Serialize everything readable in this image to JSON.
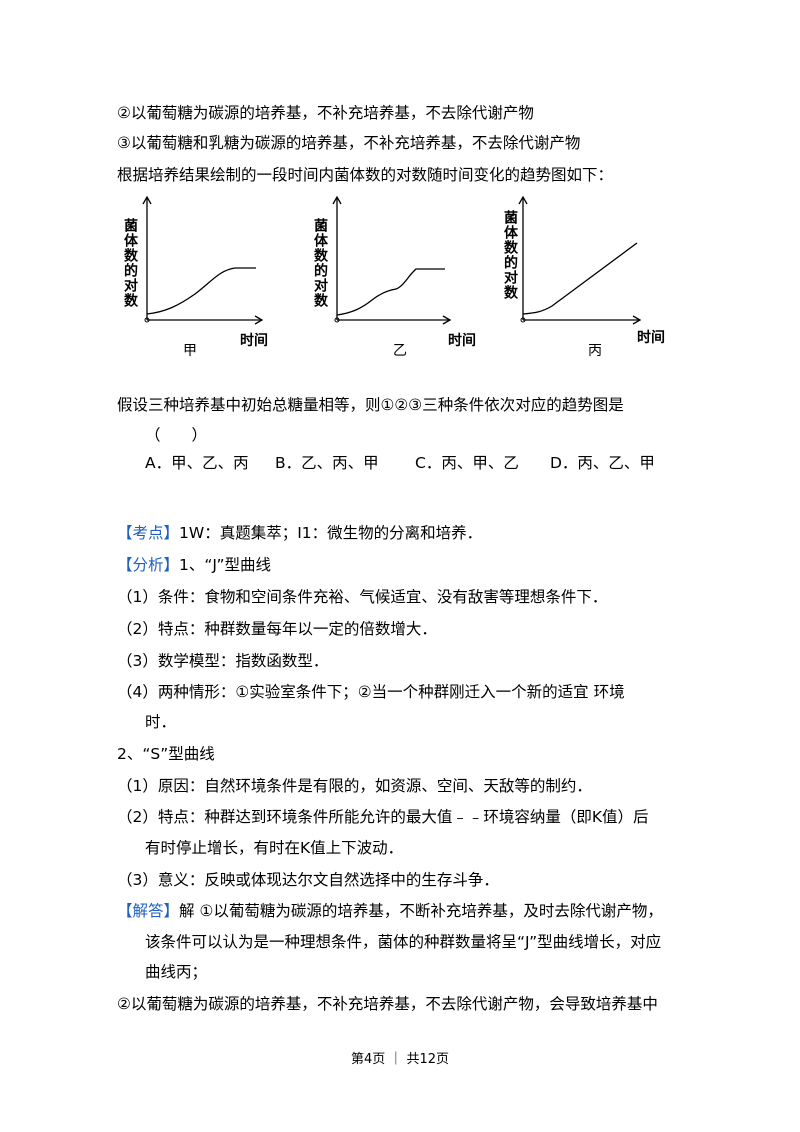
{
  "intro_lines": [
    "②以葡萄糖为碳源的培养基，不补充培养基，不去除代谢产物",
    "③以葡萄糖和乳糖为碳源的培养基，不补充培养基，不去除代谢产物",
    "根据培养结果绘制的一段时间内菌体数的对数随时间变化的趋势图如下："
  ],
  "figures": [
    {
      "y_label": "菌体数的对数",
      "x_label": "时间",
      "caption": "甲"
    },
    {
      "y_label": "菌体数的对数",
      "x_label": "时间",
      "caption": "乙"
    },
    {
      "y_label": "菌体数的对数",
      "x_label": "时间",
      "caption": "丙"
    }
  ],
  "question": "假设三种培养基中初始总糖量相等，则①②③三种条件依次对应的趋势图是",
  "blank": "（　　）",
  "options": [
    "A．甲、乙、丙",
    "B．乙、丙、甲",
    "C．丙、甲、乙",
    "D．丙、乙、甲"
  ],
  "analysis": [
    {
      "tag": "【考点】",
      "text": "1W：真题集萃；I1：微生物的分离和培养．"
    },
    {
      "tag": "【分析】",
      "text": "1、“J”型曲线"
    },
    {
      "text": "（1）条件：食物和空间条件充裕、气候适宜、没有敌害等理想条件下．"
    },
    {
      "text": "（2）特点：种群数量每年以一定的倍数增大．"
    },
    {
      "text": "（3）数学模型：指数函数型．"
    },
    {
      "text": "（4）两种情形：①实验室条件下；②当一个种群刚迁入一个新的适宜 环境"
    },
    {
      "text": "时．"
    },
    {
      "text": "2、“S”型曲线"
    },
    {
      "text": "（1）原因：自然环境条件是有限的，如资源、空间、天敌等的制约．"
    },
    {
      "text": "（2）特点：种群达到环境条件所能允许的最大值﹣﹣环境容纳量（即K值）后"
    },
    {
      "text": "有时停止增长，有时在K值上下波动．"
    },
    {
      "text": "（3）意义：反映或体现达尔文自然选择中的生存斗争．"
    },
    {
      "tag": "【解答】",
      "text": "解 ①以葡萄糖为碳源的培养基，不断补充培养基，及时去除代谢产物，"
    },
    {
      "text": "该条件可以认为是一种理想条件，菌体的种群数量将呈“J”型曲线增长，对应"
    },
    {
      "text": "曲线丙；"
    },
    {
      "text": "②以葡萄糖为碳源的培养基，不补充培养基，不去除代谢产物，会导致培养基中"
    }
  ],
  "footer": "第4页 ｜ 共12页"
}
